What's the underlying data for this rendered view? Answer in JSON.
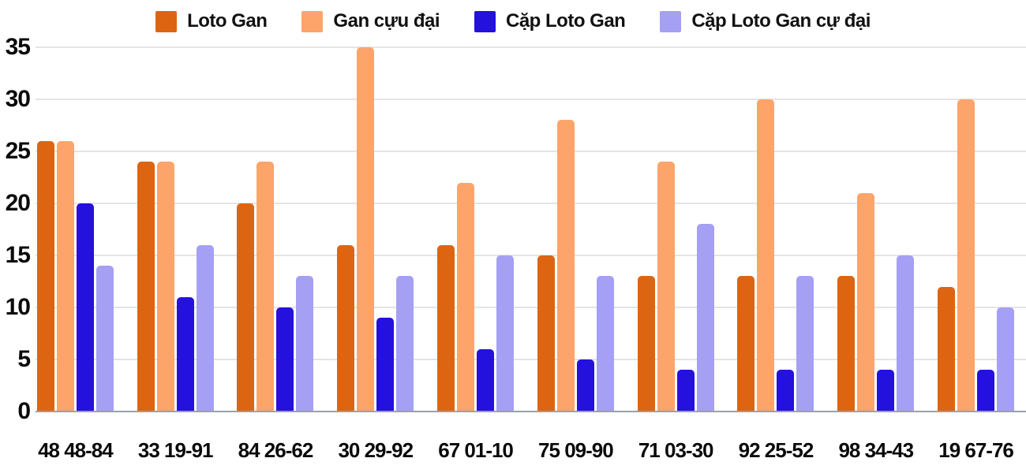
{
  "chart_data": {
    "type": "bar",
    "title": "",
    "xlabel": "",
    "ylabel": "",
    "categories": [
      "48 48-84",
      "33 19-91",
      "84 26-62",
      "30 29-92",
      "67 01-10",
      "75 09-90",
      "71 03-30",
      "92 25-52",
      "98 34-43",
      "19 67-76"
    ],
    "series": [
      {
        "name": "Loto Gan",
        "color": "#dd6512",
        "values": [
          26,
          24,
          20,
          16,
          16,
          15,
          13,
          13,
          13,
          12
        ]
      },
      {
        "name": "Gan cựu đại",
        "color": "#fda46b",
        "values": [
          26,
          24,
          24,
          35,
          22,
          28,
          24,
          30,
          21,
          30
        ]
      },
      {
        "name": "Cặp Loto Gan",
        "color": "#2411dd",
        "values": [
          20,
          11,
          10,
          9,
          6,
          5,
          4,
          4,
          4,
          4
        ]
      },
      {
        "name": "Cặp Loto Gan cự đại",
        "color": "#a5a0f3",
        "values": [
          14,
          16,
          13,
          13,
          15,
          13,
          18,
          13,
          15,
          10
        ]
      }
    ],
    "ylim": [
      0,
      35
    ],
    "yticks": [
      0,
      5,
      10,
      15,
      20,
      25,
      30,
      35
    ],
    "grid": true,
    "legend_position": "top"
  },
  "colors": {
    "background": "#ffffff",
    "gridline": "#e4e4e4",
    "axis_line": "#9aa0a6",
    "label_text": "#0a0a0a"
  }
}
